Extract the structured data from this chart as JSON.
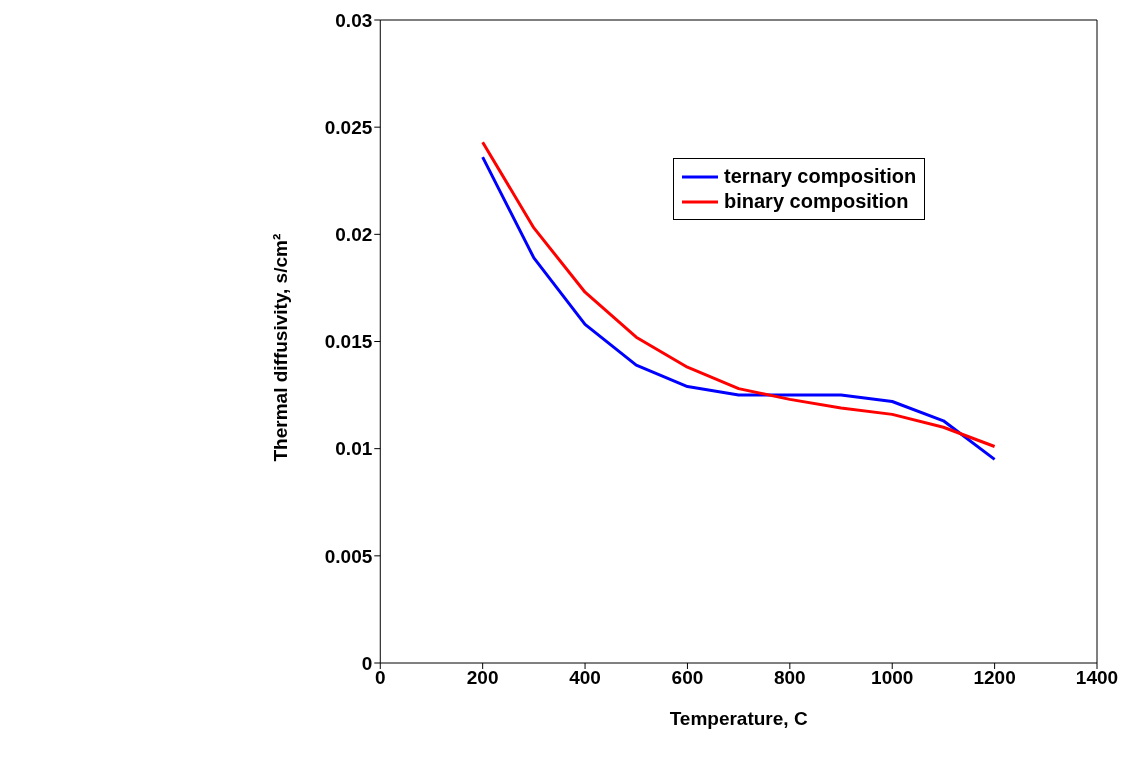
{
  "chart_data": {
    "type": "line",
    "xlabel": "Temperature, C",
    "ylabel": "Thermal diffusivity, s/cm²",
    "xlim": [
      0,
      1400
    ],
    "xticks": [
      0,
      200,
      400,
      600,
      800,
      1000,
      1200,
      1400
    ],
    "ylim": [
      0,
      0.03
    ],
    "yticks": [
      0,
      0.005,
      0.01,
      0.015,
      0.02,
      0.025,
      0.03
    ],
    "grid": false,
    "legend": "top right",
    "marker": "none",
    "x": [
      200,
      300,
      400,
      500,
      600,
      700,
      800,
      900,
      1000,
      1100,
      1200
    ],
    "series": [
      {
        "name": "ternary composition",
        "color": "#0000ff",
        "values": [
          0.0236,
          0.0189,
          0.0158,
          0.0139,
          0.0129,
          0.0125,
          0.0125,
          0.0125,
          0.0122,
          0.0113,
          0.0095
        ]
      },
      {
        "name": "binary composition",
        "color": "#ff0000",
        "values": [
          0.0243,
          0.0203,
          0.0173,
          0.0152,
          0.0138,
          0.0128,
          0.0123,
          0.0119,
          0.0116,
          0.011,
          0.0101
        ]
      }
    ]
  }
}
